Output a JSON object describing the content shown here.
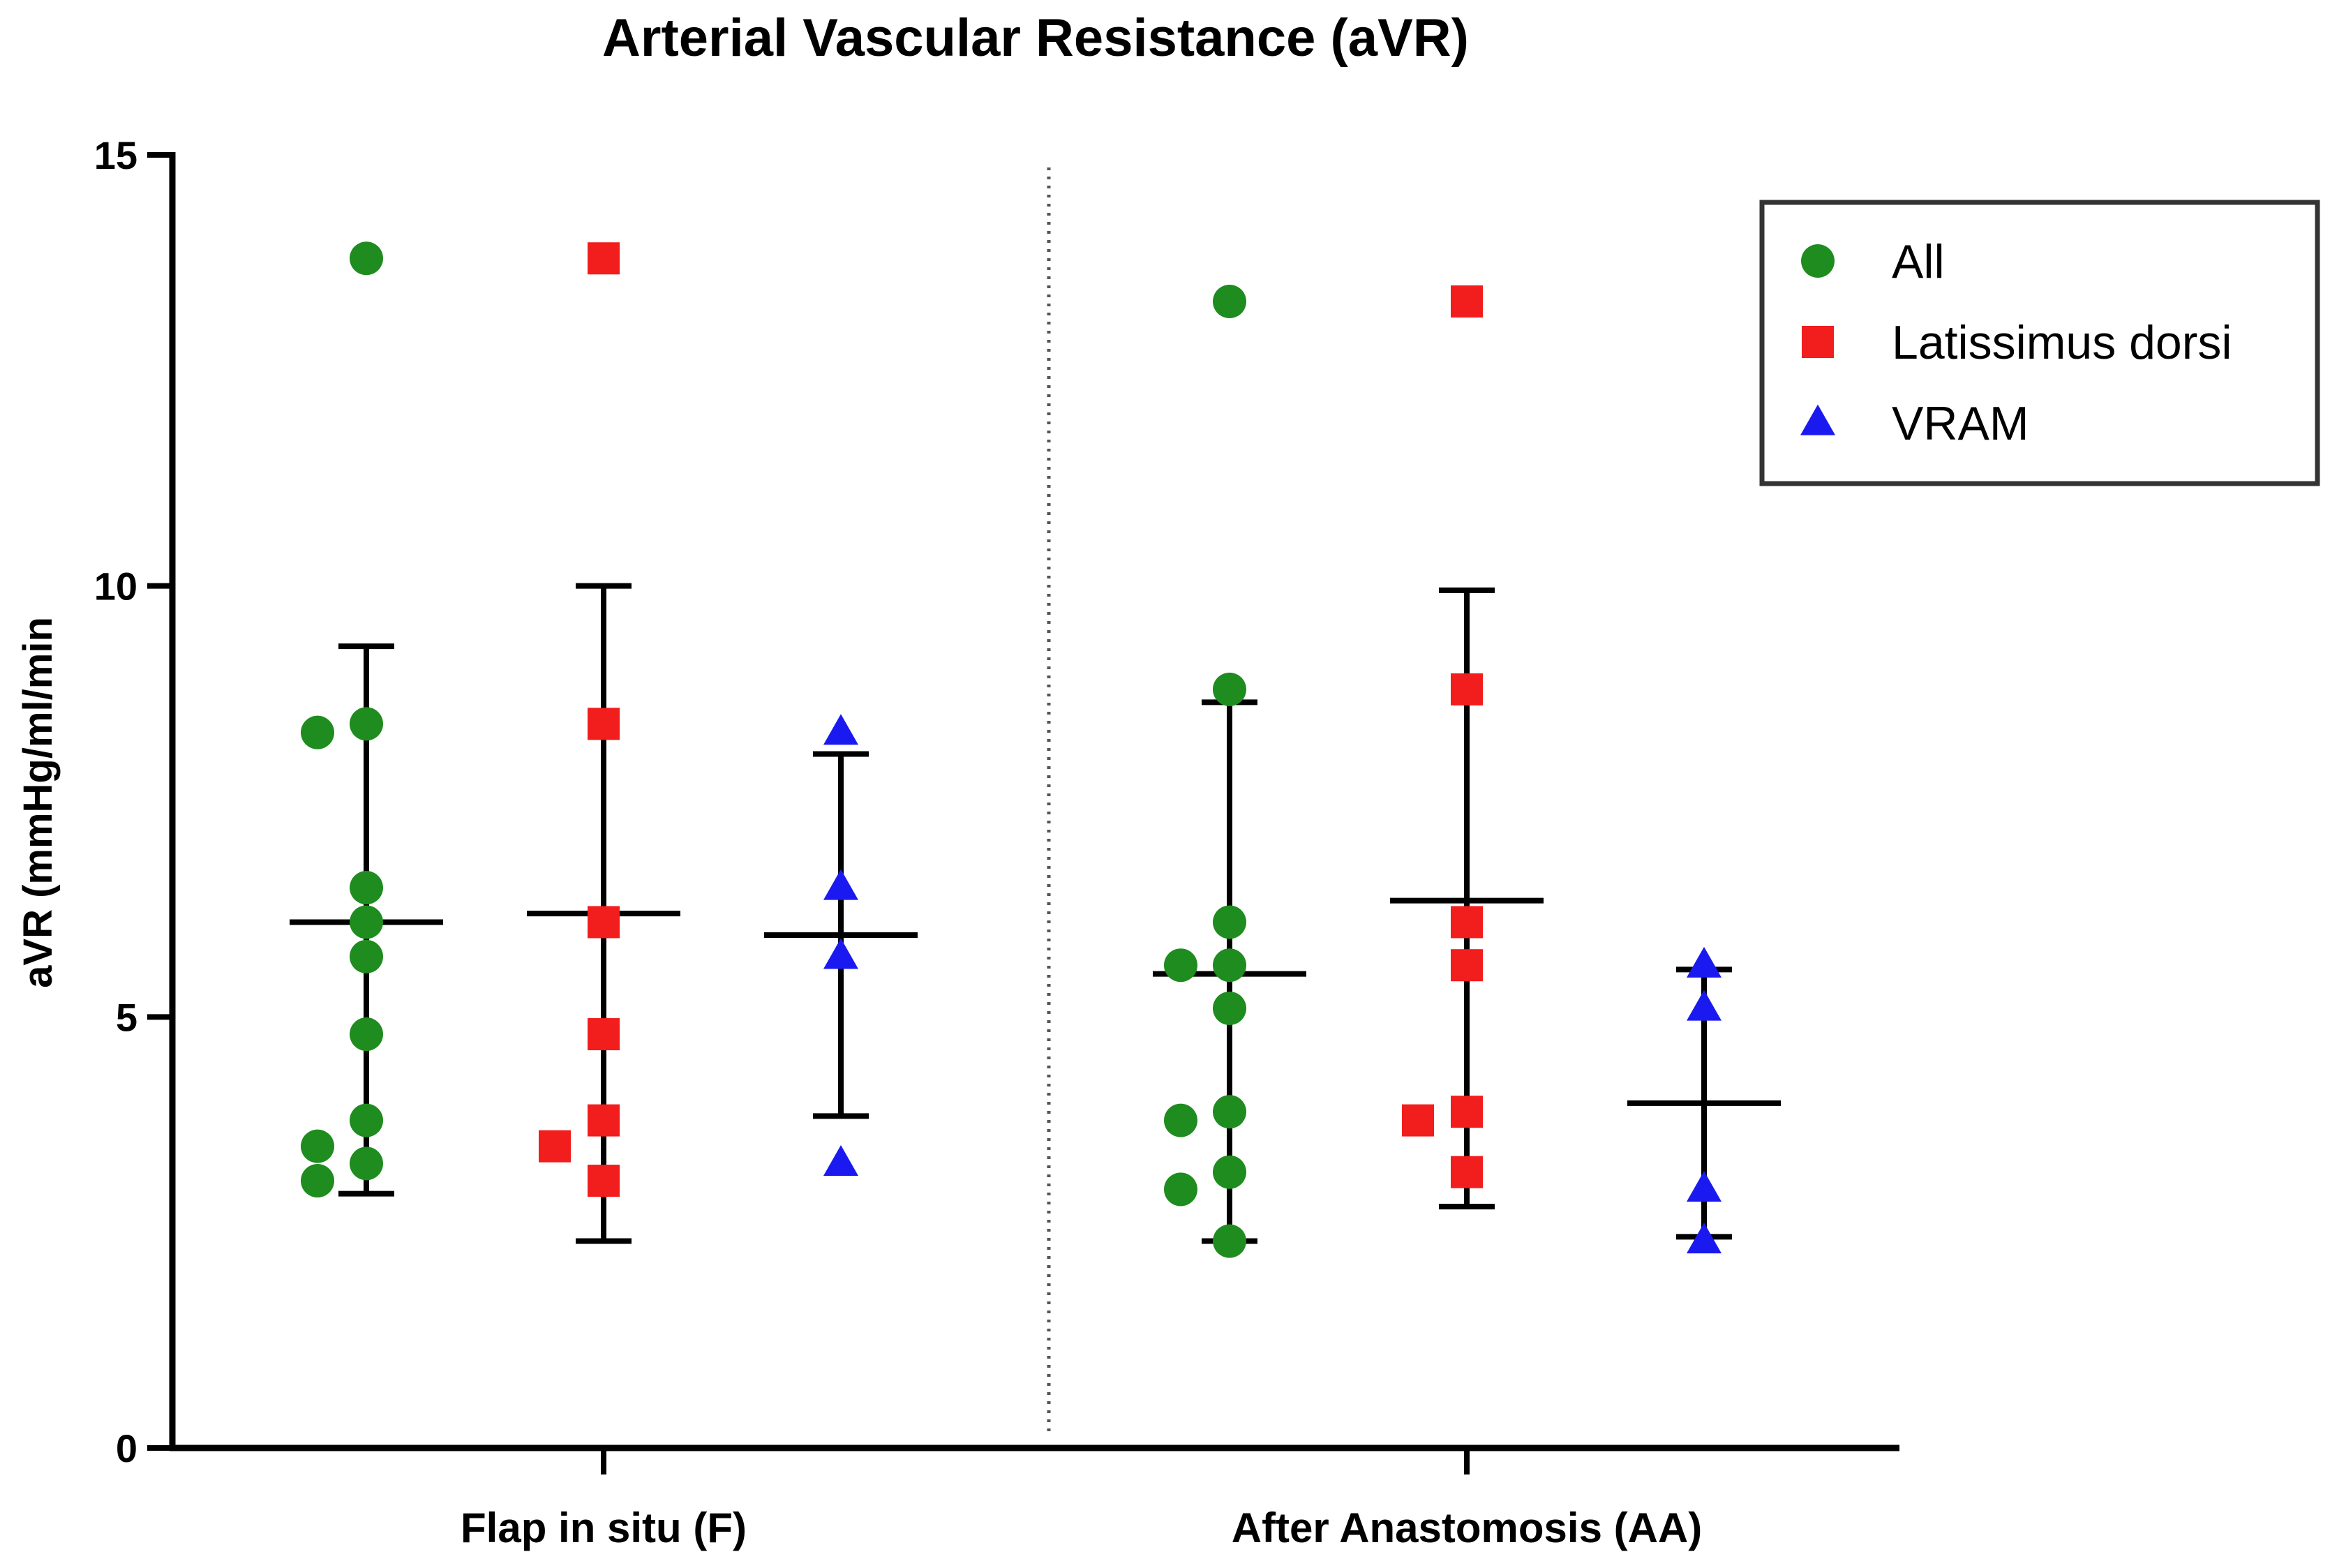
{
  "chart_data": {
    "type": "scatter",
    "title": "Arterial Vascular Resistance (aVR)",
    "ylabel": "aVR (mmHg/ml/min",
    "xlabel": "",
    "ylim": [
      0,
      15
    ],
    "yticks": [
      0,
      5,
      10,
      15
    ],
    "groups": [
      "Flap in situ (F)",
      "After Anastomosis (AA)"
    ],
    "legend": {
      "position": "top-right",
      "entries": [
        {
          "name": "All",
          "marker": "circle",
          "color": "#1E8C1E"
        },
        {
          "name": "Latissimus dorsi",
          "marker": "square",
          "color": "#F21D1D"
        },
        {
          "name": "VRAM",
          "marker": "triangle",
          "color": "#1A1AF0"
        }
      ]
    },
    "series": [
      {
        "name": "All",
        "marker": "circle",
        "color": "#1E8C1E",
        "groups": [
          {
            "group": "Flap in situ (F)",
            "values": [
              13.8,
              8.4,
              8.3,
              6.5,
              6.1,
              5.7,
              4.8,
              3.8,
              3.5,
              3.3,
              3.1
            ],
            "mean": 6.1,
            "error_low": 2.95,
            "error_high": 9.3
          },
          {
            "group": "After Anastomosis (AA)",
            "values": [
              13.3,
              8.8,
              6.1,
              5.6,
              5.6,
              5.1,
              3.9,
              3.8,
              3.2,
              3.0,
              2.4
            ],
            "mean": 5.5,
            "error_low": 2.4,
            "error_high": 8.65
          }
        ]
      },
      {
        "name": "Latissimus dorsi",
        "marker": "square",
        "color": "#F21D1D",
        "groups": [
          {
            "group": "Flap in situ (F)",
            "values": [
              13.8,
              8.4,
              6.1,
              4.8,
              3.8,
              3.5,
              3.1
            ],
            "mean": 6.2,
            "error_low": 2.4,
            "error_high": 10.0
          },
          {
            "group": "After Anastomosis (AA)",
            "values": [
              13.3,
              8.8,
              6.1,
              5.6,
              3.9,
              3.8,
              3.2
            ],
            "mean": 6.35,
            "error_low": 2.8,
            "error_high": 9.95
          }
        ]
      },
      {
        "name": "VRAM",
        "marker": "triangle",
        "color": "#1A1AF0",
        "groups": [
          {
            "group": "Flap in situ (F)",
            "values": [
              8.3,
              6.5,
              5.7,
              3.3
            ],
            "mean": 5.95,
            "error_low": 3.85,
            "error_high": 8.05
          },
          {
            "group": "After Anastomosis (AA)",
            "values": [
              5.6,
              5.1,
              3.0,
              2.4
            ],
            "mean": 4.0,
            "error_low": 2.45,
            "error_high": 5.55
          }
        ]
      }
    ]
  }
}
